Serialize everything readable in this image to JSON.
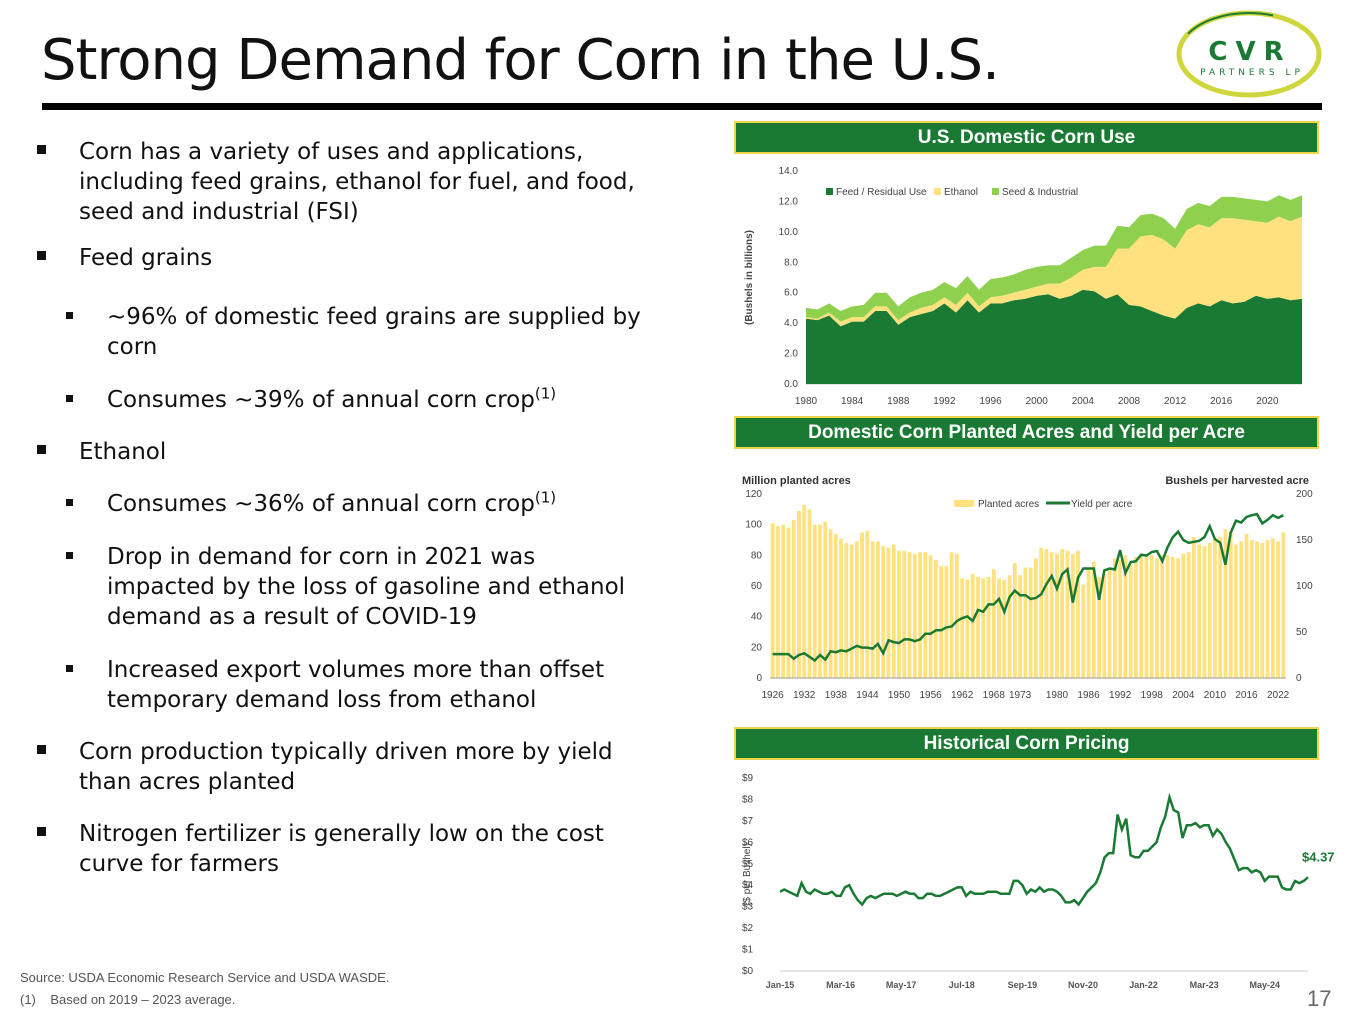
{
  "title": "Strong Demand for Corn in the U.S.",
  "logo": {
    "line1": "CVR",
    "line2": "PARTNERS LP"
  },
  "colors": {
    "dark_green": "#1a7a33",
    "yellow": "#ffe17f",
    "light_green": "#8fd14f",
    "gold": "#f0d44a"
  },
  "bullets": [
    {
      "level": 1,
      "text": "Corn has a variety of uses and applications, including feed grains, ethanol for fuel, and food, seed and industrial (FSI)"
    },
    {
      "level": 1,
      "text": "Feed grains"
    },
    {
      "level": 2,
      "text": "~96% of domestic feed grains are supplied by corn"
    },
    {
      "level": 2,
      "text": "Consumes ~39% of annual corn crop",
      "sup": "(1)"
    },
    {
      "level": 1,
      "text": "Ethanol"
    },
    {
      "level": 2,
      "text": "Consumes ~36% of annual corn crop",
      "sup": "(1)"
    },
    {
      "level": 2,
      "text": "Drop in demand for corn in 2021 was impacted by the loss of gasoline and ethanol demand as a result of COVID-19"
    },
    {
      "level": 2,
      "text": "Increased export volumes more than offset temporary demand loss from ethanol"
    },
    {
      "level": 1,
      "text": "Corn production typically driven more by yield than acres planted"
    },
    {
      "level": 1,
      "text": "Nitrogen fertilizer is generally low on the cost curve for farmers"
    }
  ],
  "footnotes": {
    "source": "Source:  USDA Economic Research Service and USDA WASDE.",
    "note_marker": "(1)",
    "note_text": "Based on 2019 – 2023 average."
  },
  "page_number": "17",
  "chart_data": [
    {
      "type": "area",
      "panel_title": "U.S. Domestic Corn Use",
      "ylabel": "(Bushels in billions)",
      "ylim": [
        0,
        14
      ],
      "yticks": [
        "0.0",
        "2.0",
        "4.0",
        "6.0",
        "8.0",
        "10.0",
        "12.0",
        "14.0"
      ],
      "xtick_labels": [
        "1980",
        "1984",
        "1988",
        "1992",
        "1996",
        "2000",
        "2004",
        "2008",
        "2012",
        "2016",
        "2020"
      ],
      "x_start": 1980,
      "x_end": 2023,
      "legend": [
        "Feed / Residual Use",
        "Ethanol",
        "Seed & Industrial"
      ],
      "series": [
        {
          "name": "Feed / Residual Use",
          "values": [
            4.3,
            4.2,
            4.5,
            3.8,
            4.1,
            4.1,
            4.8,
            4.8,
            3.9,
            4.4,
            4.6,
            4.8,
            5.3,
            4.7,
            5.5,
            4.7,
            5.3,
            5.3,
            5.5,
            5.6,
            5.8,
            5.9,
            5.6,
            5.8,
            6.2,
            6.1,
            5.6,
            5.9,
            5.2,
            5.1,
            4.8,
            4.5,
            4.3,
            5.0,
            5.3,
            5.1,
            5.5,
            5.3,
            5.4,
            5.8,
            5.6,
            5.7,
            5.5,
            5.6
          ]
        },
        {
          "name": "Ethanol",
          "values": [
            0.1,
            0.1,
            0.2,
            0.3,
            0.3,
            0.3,
            0.3,
            0.3,
            0.3,
            0.3,
            0.4,
            0.4,
            0.4,
            0.5,
            0.5,
            0.4,
            0.4,
            0.5,
            0.5,
            0.6,
            0.6,
            0.7,
            1.0,
            1.2,
            1.3,
            1.6,
            2.1,
            3.0,
            3.7,
            4.6,
            5.0,
            5.0,
            4.6,
            5.1,
            5.2,
            5.2,
            5.4,
            5.6,
            5.4,
            4.9,
            5.0,
            5.3,
            5.2,
            5.4
          ]
        },
        {
          "name": "Seed & Industrial",
          "values": [
            0.6,
            0.6,
            0.6,
            0.7,
            0.7,
            0.8,
            0.9,
            0.9,
            0.9,
            1.0,
            1.0,
            1.0,
            1.0,
            1.1,
            1.1,
            1.1,
            1.2,
            1.2,
            1.2,
            1.3,
            1.3,
            1.2,
            1.2,
            1.3,
            1.3,
            1.4,
            1.4,
            1.5,
            1.4,
            1.4,
            1.4,
            1.4,
            1.3,
            1.4,
            1.4,
            1.4,
            1.4,
            1.4,
            1.4,
            1.4,
            1.4,
            1.4,
            1.4,
            1.4
          ]
        }
      ]
    },
    {
      "type": "bar+line",
      "panel_title": "Domestic Corn Planted Acres and Yield per Acre",
      "left_axis_title": "Million planted acres",
      "right_axis_title": "Bushels per harvested acre",
      "left_ylim": [
        0,
        120
      ],
      "left_yticks": [
        "0",
        "20",
        "40",
        "60",
        "80",
        "100",
        "120"
      ],
      "right_ylim": [
        0,
        200
      ],
      "right_yticks": [
        "0",
        "50",
        "100",
        "150",
        "200"
      ],
      "xtick_labels": [
        "1926",
        "1932",
        "1938",
        "1944",
        "1950",
        "1956",
        "1962",
        "1968",
        "1973",
        "1980",
        "1986",
        "1992",
        "1998",
        "2004",
        "2010",
        "2016",
        "2022"
      ],
      "x_start": 1926,
      "x_end": 2023,
      "legend": [
        "Planted acres",
        "Yield per acre"
      ],
      "acres": [
        101,
        99,
        100,
        98,
        103,
        109,
        113,
        110,
        100,
        100,
        102,
        97,
        94,
        91,
        88,
        87,
        89,
        95,
        96,
        89,
        89,
        86,
        85,
        87,
        83,
        83,
        82,
        81,
        82,
        82,
        80,
        77,
        73,
        73,
        82,
        81,
        65,
        64,
        68,
        66,
        65,
        66,
        71,
        65,
        64,
        67,
        75,
        67,
        72,
        72,
        78,
        85,
        84,
        82,
        81,
        84,
        83,
        81,
        83,
        61,
        72,
        76,
        66,
        68,
        72,
        78,
        77,
        80,
        74,
        79,
        81,
        80,
        80,
        78,
        80,
        80,
        79,
        78,
        81,
        82,
        92,
        87,
        86,
        88,
        91,
        92,
        97,
        95,
        87,
        89,
        94,
        90,
        89,
        88,
        90,
        91,
        89,
        95
      ],
      "yield": [
        26,
        26,
        26,
        26,
        21,
        25,
        27,
        23,
        19,
        25,
        20,
        29,
        28,
        30,
        29,
        32,
        35,
        33,
        33,
        32,
        37,
        27,
        41,
        39,
        38,
        42,
        42,
        40,
        42,
        48,
        48,
        52,
        52,
        55,
        56,
        62,
        65,
        67,
        62,
        74,
        72,
        80,
        80,
        86,
        72,
        88,
        95,
        90,
        90,
        86,
        87,
        91,
        102,
        111,
        97,
        113,
        118,
        82,
        109,
        119,
        119,
        119,
        85,
        117,
        119,
        118,
        139,
        114,
        126,
        127,
        134,
        133,
        137,
        138,
        127,
        142,
        153,
        159,
        150,
        147,
        148,
        149,
        153,
        165,
        151,
        147,
        123,
        158,
        171,
        169,
        175,
        177,
        178,
        168,
        172,
        177,
        174,
        177
      ]
    },
    {
      "type": "line",
      "panel_title": "Historical Corn Pricing",
      "ylabel": "($ per Bushel)",
      "ylim": [
        0,
        9
      ],
      "yticks": [
        "$0",
        "$1",
        "$2",
        "$3",
        "$4",
        "$5",
        "$6",
        "$7",
        "$8",
        "$9"
      ],
      "xtick_labels": [
        "Jan-15",
        "Mar-16",
        "May-17",
        "Jul-18",
        "Sep-19",
        "Nov-20",
        "Jan-22",
        "Mar-23",
        "May-24"
      ],
      "end_label": "$4.37",
      "values": [
        3.7,
        3.8,
        3.7,
        3.6,
        3.5,
        4.1,
        3.7,
        3.6,
        3.8,
        3.7,
        3.6,
        3.6,
        3.7,
        3.5,
        3.5,
        3.9,
        4.0,
        3.6,
        3.3,
        3.1,
        3.4,
        3.5,
        3.4,
        3.5,
        3.6,
        3.6,
        3.6,
        3.5,
        3.6,
        3.7,
        3.6,
        3.6,
        3.4,
        3.4,
        3.6,
        3.6,
        3.5,
        3.5,
        3.6,
        3.7,
        3.8,
        3.9,
        3.9,
        3.5,
        3.7,
        3.6,
        3.6,
        3.6,
        3.7,
        3.7,
        3.7,
        3.6,
        3.6,
        3.6,
        4.2,
        4.2,
        4.0,
        3.6,
        3.8,
        3.7,
        3.9,
        3.7,
        3.8,
        3.8,
        3.7,
        3.5,
        3.2,
        3.2,
        3.3,
        3.1,
        3.4,
        3.7,
        3.9,
        4.1,
        4.6,
        5.3,
        5.5,
        5.5,
        7.3,
        6.6,
        7.1,
        5.4,
        5.3,
        5.3,
        5.6,
        5.6,
        5.8,
        6.0,
        6.7,
        7.2,
        8.1,
        7.5,
        7.4,
        6.2,
        6.8,
        6.8,
        6.9,
        6.7,
        6.8,
        6.8,
        6.3,
        6.6,
        6.4,
        6.0,
        5.7,
        5.2,
        4.7,
        4.8,
        4.8,
        4.6,
        4.7,
        4.6,
        4.2,
        4.4,
        4.4,
        4.4,
        3.9,
        3.8,
        3.8,
        4.2,
        4.1,
        4.2,
        4.37
      ]
    }
  ]
}
